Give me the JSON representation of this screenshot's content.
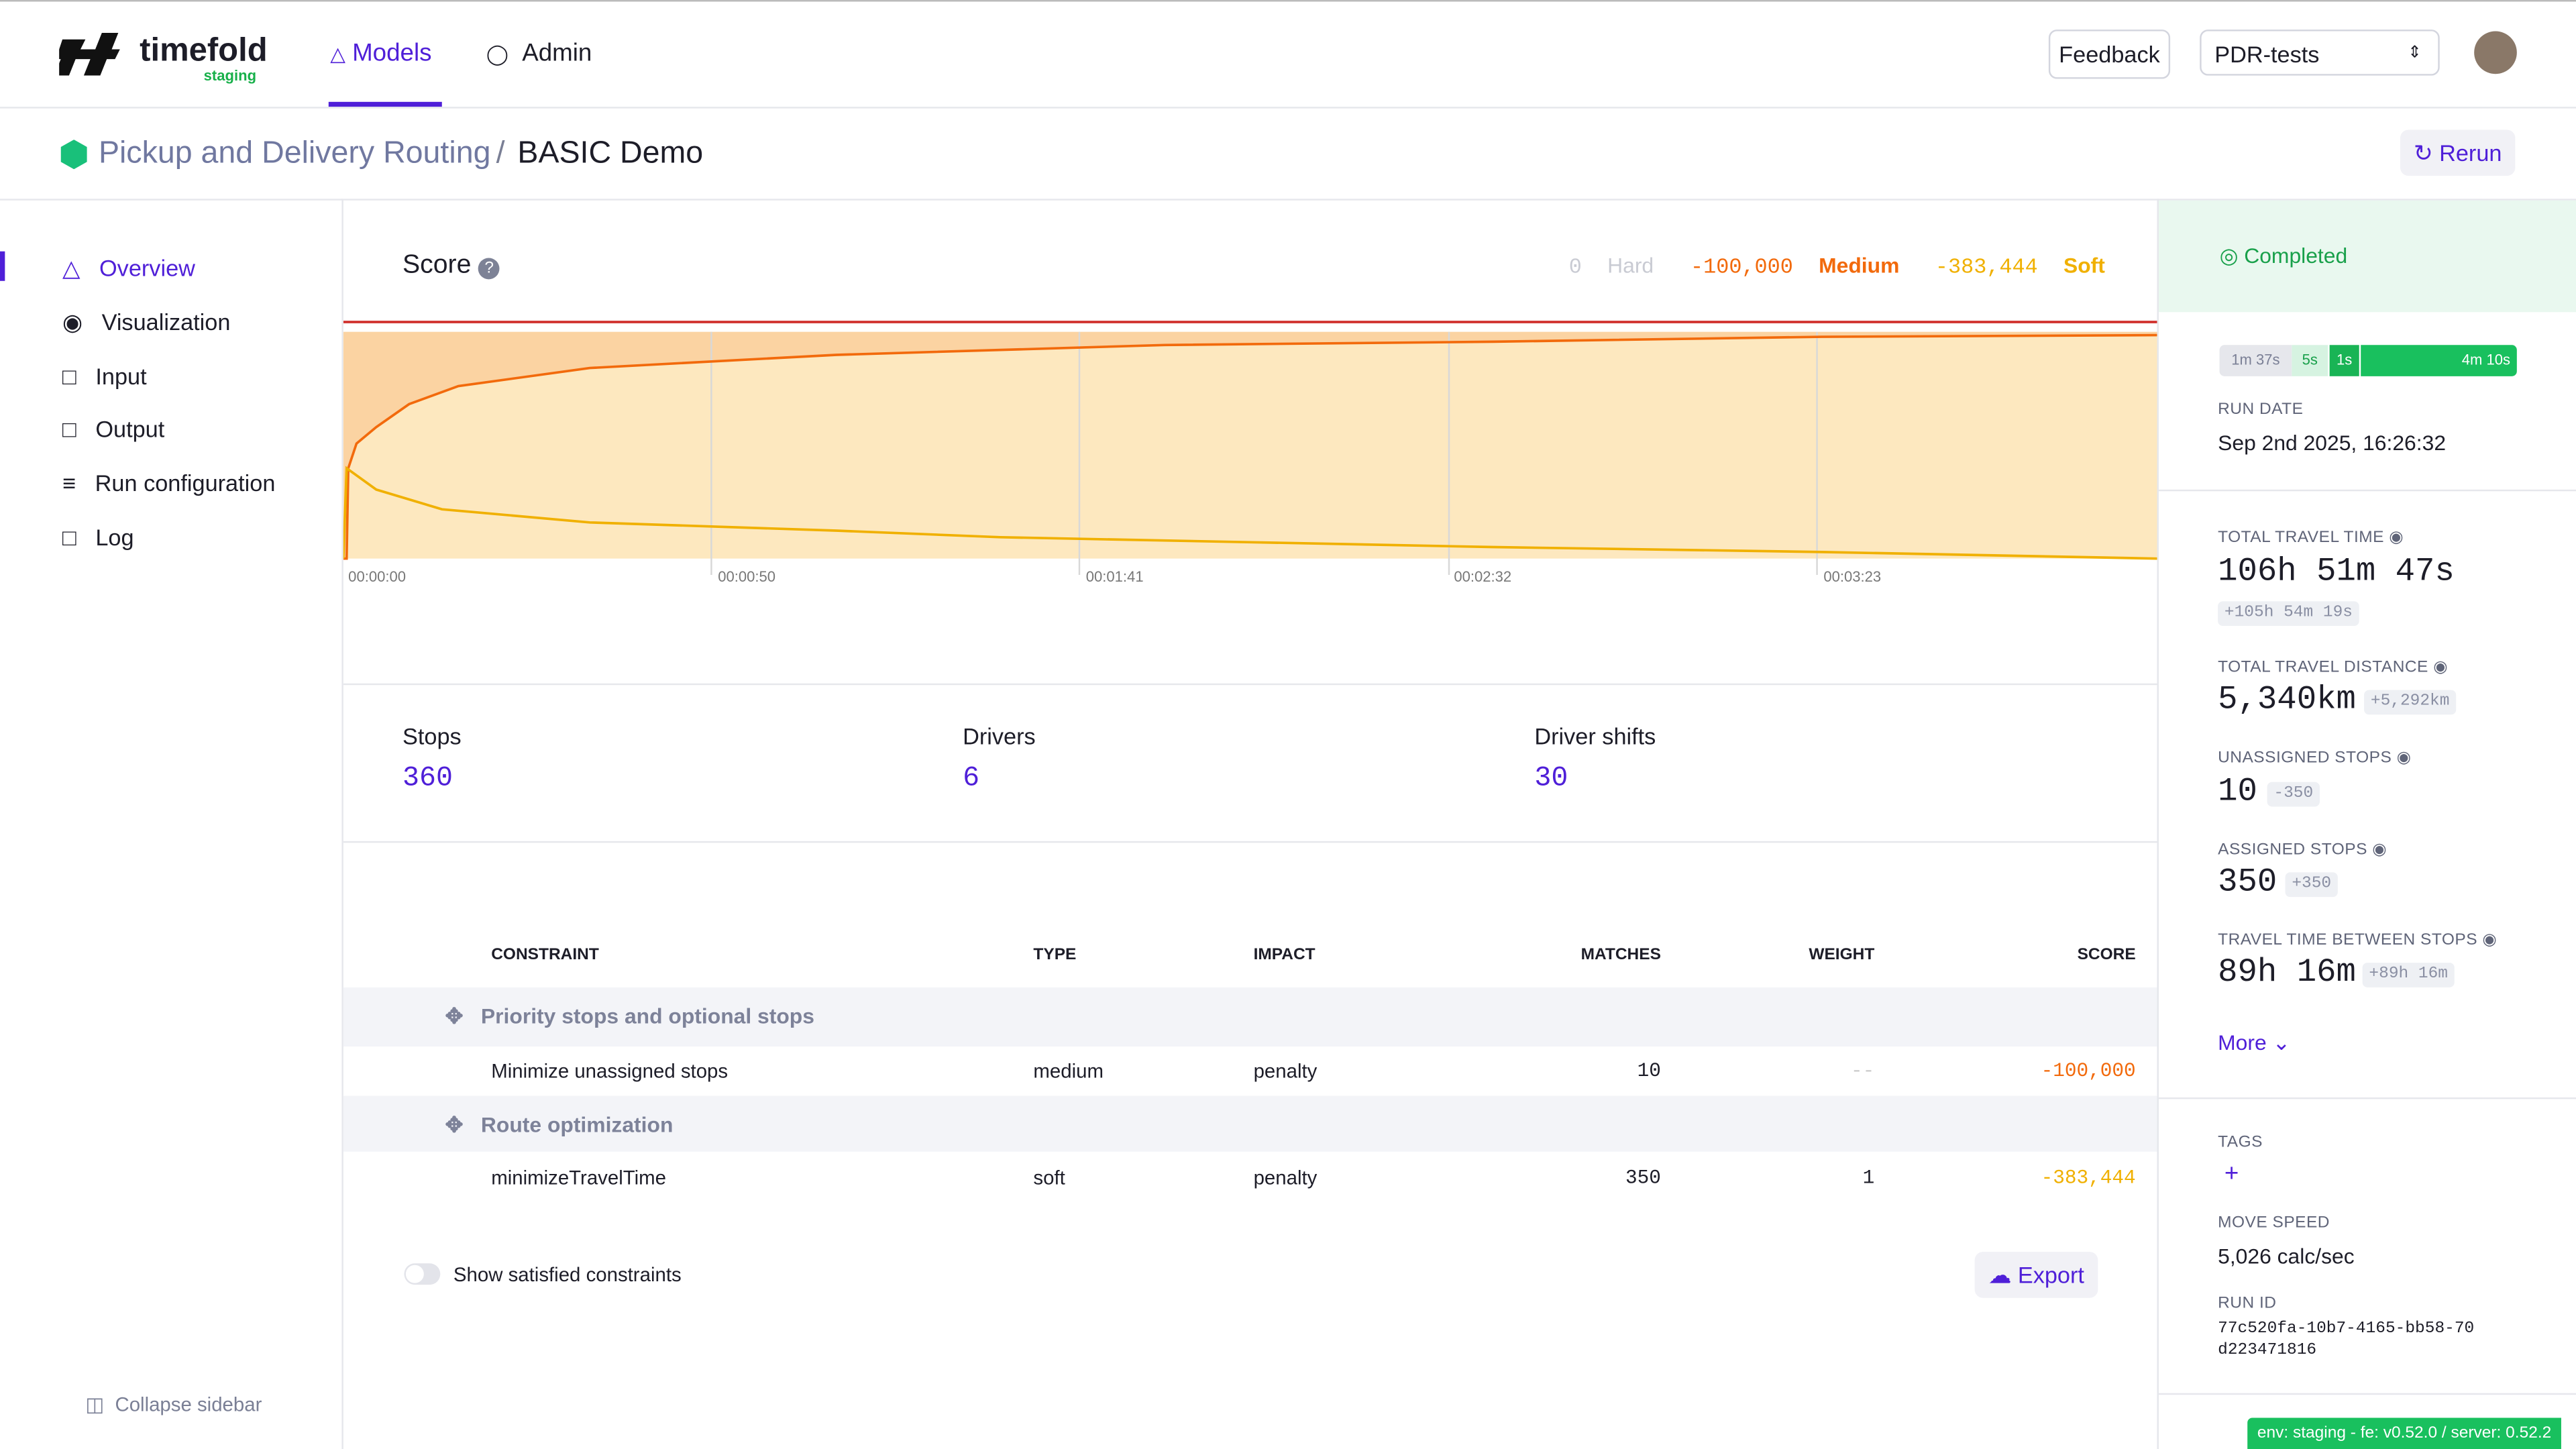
{
  "header": {
    "brand": "timefold",
    "env": "staging",
    "nav": [
      "Models",
      "Admin"
    ],
    "feedback": "Feedback",
    "project": "PDR-tests"
  },
  "breadcrumb": {
    "model": "Pickup and Delivery Routing",
    "separator": "/",
    "run": "BASIC Demo",
    "rerun": "Rerun"
  },
  "sidebar": {
    "items": [
      "Overview",
      "Visualization",
      "Input",
      "Output",
      "Run configuration",
      "Log"
    ],
    "collapse": "Collapse sidebar"
  },
  "score": {
    "title": "Score",
    "hard": {
      "value": "0",
      "label": "Hard"
    },
    "medium": {
      "value": "-100,000",
      "label": "Medium"
    },
    "soft": {
      "value": "-383,444",
      "label": "Soft"
    },
    "x_labels": [
      "00:00:00",
      "00:00:50",
      "00:01:41",
      "00:02:32",
      "00:03:23"
    ]
  },
  "stats": [
    {
      "label": "Stops",
      "value": "360"
    },
    {
      "label": "Drivers",
      "value": "6"
    },
    {
      "label": "Driver shifts",
      "value": "30"
    }
  ],
  "table": {
    "headers": [
      "CONSTRAINT",
      "TYPE",
      "IMPACT",
      "MATCHES",
      "WEIGHT",
      "SCORE"
    ],
    "groups": [
      {
        "name": "Priority stops and optional stops",
        "rows": [
          [
            "Minimize unassigned stops",
            "medium",
            "penalty",
            "10",
            "--",
            "-100,000"
          ]
        ]
      },
      {
        "name": "Route optimization",
        "rows": [
          [
            "minimizeTravelTime",
            "soft",
            "penalty",
            "350",
            "1",
            "-383,444"
          ]
        ]
      }
    ]
  },
  "toggle": "Show satisfied constraints",
  "export": "Export",
  "status": "Completed",
  "timeline": [
    "1m 37s",
    "5s",
    "1s",
    "4m 10s"
  ],
  "run_date": {
    "label": "RUN DATE",
    "value": "Sep 2nd 2025, 16:26:32"
  },
  "metrics": [
    {
      "label": "TOTAL TRAVEL TIME",
      "value": "106h 51m 47s",
      "delta": "+105h 54m 19s"
    },
    {
      "label": "TOTAL TRAVEL DISTANCE",
      "value": "5,340km",
      "delta": "+5,292km"
    },
    {
      "label": "UNASSIGNED STOPS",
      "value": "10",
      "delta": "-350"
    },
    {
      "label": "ASSIGNED STOPS",
      "value": "350",
      "delta": "+350"
    },
    {
      "label": "TRAVEL TIME BETWEEN STOPS",
      "value": "89h 16m",
      "delta": "+89h 16m"
    }
  ],
  "more": "More",
  "tags": {
    "label": "TAGS",
    "add": "+"
  },
  "move_speed": {
    "label": "MOVE SPEED",
    "value": "5,026 calc/sec"
  },
  "run_id": {
    "label": "RUN ID",
    "value": "77c520fa-10b7-4165-bb58-70d223471816"
  },
  "env_badge": "env: staging - fe: v0.52.0 / server: 0.52.2"
}
